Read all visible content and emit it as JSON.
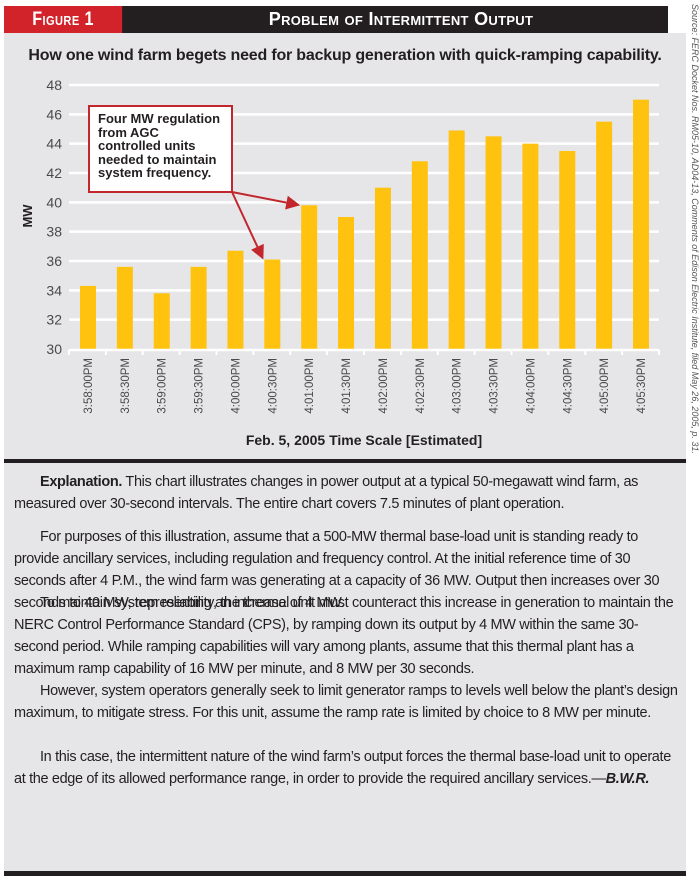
{
  "header": {
    "figure_label": "Figure 1",
    "figure_title": "Problem of Intermittent Output"
  },
  "source_note": "Source: FERC Docket Nos. RM05-10, AD04-13, Comments of Edison Electric Institute, filed May 26, 2005, p. 31.",
  "colors": {
    "bar": "#ffc20e",
    "accent_red": "#d2232a",
    "header_dark": "#231f20",
    "panel_bg": "#e6e6e8"
  },
  "chart_data": {
    "type": "bar",
    "title": "How one wind farm begets need for backup generation with quick-ramping capability.",
    "xlabel": "Feb. 5, 2005 Time Scale [Estimated]",
    "ylabel": "MW",
    "ylim": [
      30,
      48
    ],
    "yticks": [
      30,
      32,
      34,
      36,
      38,
      40,
      42,
      44,
      46,
      48
    ],
    "grid": true,
    "categories": [
      "3:58:00PM",
      "3:58:30PM",
      "3:59:00PM",
      "3:59:30PM",
      "4:00:00PM",
      "4:00:30PM",
      "4:01:00PM",
      "4:01:30PM",
      "4:02:00PM",
      "4:02:30PM",
      "4:03:00PM",
      "4:03:30PM",
      "4:04:00PM",
      "4:04:30PM",
      "4:05:00PM",
      "4:05:30PM"
    ],
    "values": [
      34.3,
      35.6,
      33.8,
      35.6,
      36.7,
      36.1,
      39.8,
      39.0,
      41.0,
      42.8,
      44.9,
      44.5,
      44.0,
      43.5,
      45.5,
      47.0
    ],
    "annotation": {
      "text": "Four MW regulation from AGC controlled units needed to maintain system frequency.",
      "points_to": [
        "4:00:30PM",
        "4:01:00PM"
      ]
    }
  },
  "explanation": {
    "p1_lead": "Explanation.",
    "p1": " This chart illustrates changes in power output at a typical 50-megawatt wind farm, as measured over 30-second intervals. The entire chart covers 7.5 minutes of plant operation.",
    "p2": "For purposes of this illustration, assume that a 500-MW thermal base-load unit is standing ready to provide ancillary services, including regulation and frequency control. At the initial reference time of 30 seconds after 4 P.M., the wind farm was generating at a capacity of 36 MW. Output then increases over 30 seconds to 40 MW, representing an increase of 4 MW.",
    "p3": "To maintain system reliability, the thermal unit must counteract this increase in generation to maintain the NERC Control Performance Standard (CPS), by ramping down its output by 4 MW within the same 30-second period. While ramping capabilities will vary among plants, assume that this thermal plant has a maximum ramp capability of 16 MW per minute, and 8 MW per 30 seconds.",
    "p4": "However, system operators generally seek to limit generator ramps to levels well below the plant’s design maximum, to mitigate stress. For this unit, assume the ramp rate is limited by choice to 8 MW per minute.",
    "p5": "In this case, the intermittent nature of the wind farm’s output forces the thermal base-load unit to operate at the edge of its allowed performance range, in order to provide the required ancillary services.—",
    "signature": "B.W.R."
  }
}
